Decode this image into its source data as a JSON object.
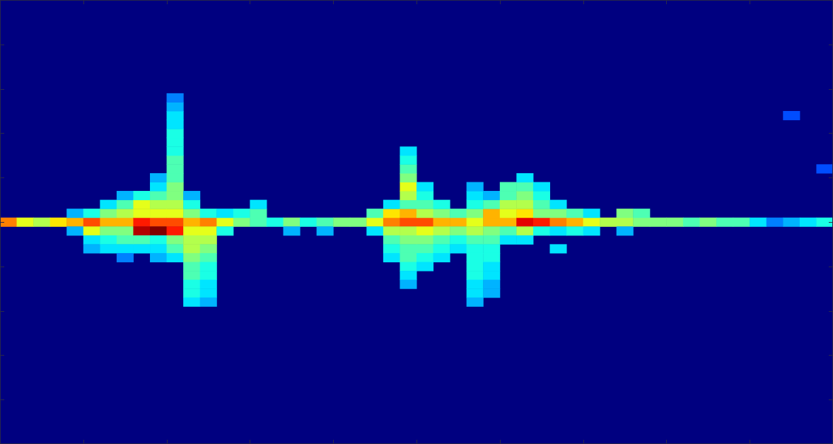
{
  "chart_data": {
    "type": "heatmap",
    "xlim": [
      0,
      100
    ],
    "xticks": [
      0,
      10,
      20,
      30,
      40,
      50,
      60,
      70,
      80,
      90,
      100
    ],
    "ylim": [
      -50,
      50
    ],
    "yticks": [
      -50,
      -40,
      -30,
      -20,
      -10,
      0,
      10,
      20,
      30,
      40,
      50
    ],
    "grid": false,
    "tick_labels": false,
    "color_range": [
      0,
      1
    ],
    "cell_size": [
      2,
      2
    ],
    "cells": [
      [
        1,
        0,
        0.75
      ],
      [
        3,
        0,
        0.6
      ],
      [
        5,
        0,
        0.55
      ],
      [
        7,
        0,
        0.65
      ],
      [
        9,
        0,
        0.7
      ],
      [
        9,
        2,
        0.3
      ],
      [
        9,
        -2,
        0.3
      ],
      [
        11,
        0,
        0.8
      ],
      [
        11,
        -2,
        0.6
      ],
      [
        11,
        2,
        0.4
      ],
      [
        11,
        -4,
        0.35
      ],
      [
        11,
        -6,
        0.3
      ],
      [
        13,
        0,
        0.7
      ],
      [
        13,
        2,
        0.5
      ],
      [
        13,
        4,
        0.35
      ],
      [
        13,
        -2,
        0.5
      ],
      [
        13,
        -4,
        0.4
      ],
      [
        13,
        -6,
        0.35
      ],
      [
        15,
        0,
        0.7
      ],
      [
        15,
        2,
        0.55
      ],
      [
        15,
        4,
        0.45
      ],
      [
        15,
        6,
        0.3
      ],
      [
        15,
        -2,
        0.5
      ],
      [
        15,
        -4,
        0.45
      ],
      [
        15,
        -6,
        0.35
      ],
      [
        15,
        -8,
        0.25
      ],
      [
        17,
        0,
        0.85
      ],
      [
        17,
        -2,
        0.95
      ],
      [
        17,
        2,
        0.6
      ],
      [
        17,
        4,
        0.6
      ],
      [
        17,
        6,
        0.4
      ],
      [
        17,
        -4,
        0.45
      ],
      [
        17,
        -6,
        0.35
      ],
      [
        19,
        0,
        0.8
      ],
      [
        19,
        -2,
        1.0
      ],
      [
        19,
        2,
        0.6
      ],
      [
        19,
        4,
        0.55
      ],
      [
        19,
        6,
        0.45
      ],
      [
        19,
        8,
        0.35
      ],
      [
        19,
        10,
        0.3
      ],
      [
        19,
        -4,
        0.4
      ],
      [
        19,
        -6,
        0.35
      ],
      [
        19,
        -8,
        0.3
      ],
      [
        21,
        0,
        0.8
      ],
      [
        21,
        -2,
        0.85
      ],
      [
        21,
        2,
        0.6
      ],
      [
        21,
        4,
        0.55
      ],
      [
        21,
        6,
        0.5
      ],
      [
        21,
        8,
        0.5
      ],
      [
        21,
        10,
        0.45
      ],
      [
        21,
        12,
        0.45
      ],
      [
        21,
        14,
        0.45
      ],
      [
        21,
        16,
        0.4
      ],
      [
        21,
        18,
        0.4
      ],
      [
        21,
        20,
        0.4
      ],
      [
        21,
        22,
        0.35
      ],
      [
        21,
        24,
        0.35
      ],
      [
        21,
        26,
        0.3
      ],
      [
        21,
        28,
        0.25
      ],
      [
        21,
        -4,
        0.5
      ],
      [
        21,
        -6,
        0.45
      ],
      [
        21,
        -8,
        0.35
      ],
      [
        23,
        0,
        0.7
      ],
      [
        23,
        -2,
        0.6
      ],
      [
        23,
        2,
        0.5
      ],
      [
        23,
        4,
        0.4
      ],
      [
        23,
        6,
        0.3
      ],
      [
        23,
        -4,
        0.55
      ],
      [
        23,
        -6,
        0.55
      ],
      [
        23,
        -8,
        0.5
      ],
      [
        23,
        -10,
        0.45
      ],
      [
        23,
        -12,
        0.45
      ],
      [
        23,
        -14,
        0.4
      ],
      [
        23,
        -16,
        0.4
      ],
      [
        23,
        -18,
        0.35
      ],
      [
        25,
        0,
        0.75
      ],
      [
        25,
        -2,
        0.6
      ],
      [
        25,
        -4,
        0.55
      ],
      [
        25,
        -6,
        0.5
      ],
      [
        25,
        -8,
        0.45
      ],
      [
        25,
        -10,
        0.4
      ],
      [
        25,
        -12,
        0.4
      ],
      [
        25,
        -14,
        0.35
      ],
      [
        25,
        -16,
        0.35
      ],
      [
        25,
        -18,
        0.3
      ],
      [
        25,
        2,
        0.4
      ],
      [
        27,
        0,
        0.6
      ],
      [
        27,
        -2,
        0.4
      ],
      [
        27,
        2,
        0.35
      ],
      [
        29,
        0,
        0.5
      ],
      [
        29,
        2,
        0.4
      ],
      [
        31,
        0,
        0.45
      ],
      [
        31,
        2,
        0.45
      ],
      [
        31,
        4,
        0.35
      ],
      [
        33,
        0,
        0.4
      ],
      [
        35,
        0,
        0.5
      ],
      [
        35,
        -2,
        0.3
      ],
      [
        37,
        0,
        0.4
      ],
      [
        39,
        0,
        0.45
      ],
      [
        39,
        -2,
        0.3
      ],
      [
        41,
        0,
        0.5
      ],
      [
        43,
        0,
        0.5
      ],
      [
        45,
        0,
        0.6
      ],
      [
        45,
        2,
        0.45
      ],
      [
        45,
        -2,
        0.35
      ],
      [
        47,
        0,
        0.75
      ],
      [
        47,
        2,
        0.65
      ],
      [
        47,
        4,
        0.35
      ],
      [
        47,
        -2,
        0.55
      ],
      [
        47,
        -4,
        0.45
      ],
      [
        47,
        -6,
        0.4
      ],
      [
        47,
        -8,
        0.35
      ],
      [
        49,
        0,
        0.8
      ],
      [
        49,
        2,
        0.7
      ],
      [
        49,
        4,
        0.45
      ],
      [
        49,
        6,
        0.55
      ],
      [
        49,
        8,
        0.6
      ],
      [
        49,
        10,
        0.5
      ],
      [
        49,
        12,
        0.45
      ],
      [
        49,
        14,
        0.4
      ],
      [
        49,
        16,
        0.35
      ],
      [
        49,
        -2,
        0.55
      ],
      [
        49,
        -4,
        0.5
      ],
      [
        49,
        -6,
        0.45
      ],
      [
        49,
        -8,
        0.45
      ],
      [
        49,
        -10,
        0.4
      ],
      [
        49,
        -12,
        0.35
      ],
      [
        49,
        -14,
        0.3
      ],
      [
        51,
        0,
        0.8
      ],
      [
        51,
        2,
        0.55
      ],
      [
        51,
        4,
        0.45
      ],
      [
        51,
        6,
        0.4
      ],
      [
        51,
        8,
        0.35
      ],
      [
        51,
        -2,
        0.6
      ],
      [
        51,
        -4,
        0.5
      ],
      [
        51,
        -6,
        0.45
      ],
      [
        51,
        -8,
        0.4
      ],
      [
        51,
        -10,
        0.35
      ],
      [
        53,
        0,
        0.7
      ],
      [
        53,
        2,
        0.5
      ],
      [
        53,
        4,
        0.4
      ],
      [
        53,
        -2,
        0.55
      ],
      [
        53,
        -4,
        0.45
      ],
      [
        53,
        -6,
        0.4
      ],
      [
        53,
        -8,
        0.35
      ],
      [
        55,
        0,
        0.7
      ],
      [
        55,
        2,
        0.45
      ],
      [
        55,
        -2,
        0.5
      ],
      [
        55,
        -4,
        0.4
      ],
      [
        55,
        -6,
        0.35
      ],
      [
        57,
        0,
        0.6
      ],
      [
        57,
        2,
        0.5
      ],
      [
        57,
        4,
        0.4
      ],
      [
        57,
        6,
        0.35
      ],
      [
        57,
        8,
        0.3
      ],
      [
        57,
        -2,
        0.55
      ],
      [
        57,
        -4,
        0.45
      ],
      [
        57,
        -6,
        0.4
      ],
      [
        57,
        -8,
        0.4
      ],
      [
        57,
        -10,
        0.4
      ],
      [
        57,
        -12,
        0.4
      ],
      [
        57,
        -14,
        0.35
      ],
      [
        57,
        -16,
        0.35
      ],
      [
        57,
        -18,
        0.3
      ],
      [
        59,
        0,
        0.7
      ],
      [
        59,
        2,
        0.7
      ],
      [
        59,
        4,
        0.45
      ],
      [
        59,
        6,
        0.3
      ],
      [
        59,
        -2,
        0.5
      ],
      [
        59,
        -4,
        0.45
      ],
      [
        59,
        -6,
        0.4
      ],
      [
        59,
        -8,
        0.4
      ],
      [
        59,
        -10,
        0.35
      ],
      [
        59,
        -12,
        0.35
      ],
      [
        59,
        -14,
        0.3
      ],
      [
        59,
        -16,
        0.3
      ],
      [
        61,
        0,
        0.7
      ],
      [
        61,
        2,
        0.6
      ],
      [
        61,
        4,
        0.55
      ],
      [
        61,
        6,
        0.45
      ],
      [
        61,
        8,
        0.45
      ],
      [
        61,
        -2,
        0.45
      ],
      [
        61,
        -4,
        0.35
      ],
      [
        63,
        0,
        0.9
      ],
      [
        63,
        2,
        0.65
      ],
      [
        63,
        4,
        0.55
      ],
      [
        63,
        6,
        0.5
      ],
      [
        63,
        8,
        0.45
      ],
      [
        63,
        10,
        0.35
      ],
      [
        63,
        -2,
        0.55
      ],
      [
        63,
        -4,
        0.35
      ],
      [
        65,
        0,
        0.85
      ],
      [
        65,
        2,
        0.5
      ],
      [
        65,
        4,
        0.45
      ],
      [
        65,
        6,
        0.4
      ],
      [
        65,
        8,
        0.35
      ],
      [
        65,
        -2,
        0.4
      ],
      [
        67,
        0,
        0.75
      ],
      [
        67,
        2,
        0.5
      ],
      [
        67,
        4,
        0.35
      ],
      [
        67,
        -2,
        0.35
      ],
      [
        67,
        -6,
        0.35
      ],
      [
        69,
        0,
        0.7
      ],
      [
        69,
        2,
        0.45
      ],
      [
        69,
        -2,
        0.4
      ],
      [
        71,
        0,
        0.6
      ],
      [
        71,
        2,
        0.35
      ],
      [
        71,
        -2,
        0.35
      ],
      [
        73,
        0,
        0.55
      ],
      [
        75,
        0,
        0.55
      ],
      [
        75,
        2,
        0.5
      ],
      [
        75,
        -2,
        0.3
      ],
      [
        77,
        0,
        0.5
      ],
      [
        77,
        2,
        0.45
      ],
      [
        79,
        0,
        0.5
      ],
      [
        81,
        0,
        0.5
      ],
      [
        83,
        0,
        0.45
      ],
      [
        85,
        0,
        0.5
      ],
      [
        87,
        0,
        0.45
      ],
      [
        89,
        0,
        0.45
      ],
      [
        91,
        0,
        0.35
      ],
      [
        93,
        0,
        0.25
      ],
      [
        95,
        0,
        0.3
      ],
      [
        97,
        0,
        0.35
      ],
      [
        99,
        0,
        0.4
      ],
      [
        95,
        24,
        0.2
      ],
      [
        99,
        12,
        0.2
      ]
    ]
  }
}
